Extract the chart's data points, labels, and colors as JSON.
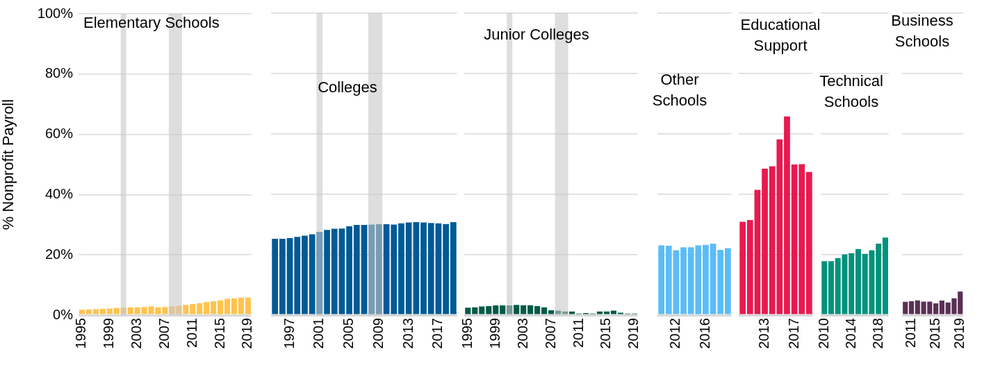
{
  "chart_data": [
    {
      "type": "bar",
      "title": "Elementary Schools",
      "ylabel": "% Nonprofit Payroll",
      "color": "#ffc34f",
      "x": [
        1995,
        1996,
        1997,
        1998,
        1999,
        2000,
        2001,
        2002,
        2003,
        2004,
        2005,
        2006,
        2007,
        2008,
        2009,
        2010,
        2011,
        2012,
        2013,
        2014,
        2015,
        2016,
        2017,
        2018,
        2019
      ],
      "values": [
        1.8,
        1.9,
        2.0,
        2.1,
        2.2,
        2.4,
        2.5,
        2.6,
        2.6,
        2.7,
        2.9,
        2.6,
        2.7,
        2.9,
        3.1,
        3.4,
        3.7,
        4.0,
        4.3,
        4.6,
        4.9,
        5.4,
        5.6,
        5.8,
        5.8
      ],
      "xlim": [
        1994.5,
        2019.5
      ],
      "xticks": [
        1995,
        1999,
        2003,
        2007,
        2011,
        2015,
        2019
      ],
      "ylim": [
        0,
        100
      ],
      "yticks": [
        {
          "value": 0,
          "label": "0%"
        },
        {
          "value": 20,
          "label": "20%"
        },
        {
          "value": 40,
          "label": "40%"
        },
        {
          "value": 60,
          "label": "60%"
        },
        {
          "value": 80,
          "label": "80%"
        },
        {
          "value": 100,
          "label": "100%"
        }
      ],
      "grid": "y",
      "legend": false,
      "bands": [
        {
          "axis": "x",
          "from": 2000.6,
          "to": 2001.4,
          "color": "#c8c8c8"
        },
        {
          "axis": "x",
          "from": 2007.55,
          "to": 2009.45,
          "color": "#c8c8c8"
        }
      ]
    },
    {
      "type": "bar",
      "title": "Colleges",
      "color": "#005a96",
      "x": [
        1995,
        1996,
        1997,
        1998,
        1999,
        2000,
        2001,
        2002,
        2003,
        2004,
        2005,
        2006,
        2007,
        2008,
        2009,
        2010,
        2011,
        2012,
        2013,
        2014,
        2015,
        2016,
        2017,
        2018,
        2019
      ],
      "values": [
        25.3,
        25.3,
        25.5,
        25.9,
        26.3,
        26.8,
        27.6,
        28.2,
        28.6,
        28.7,
        29.4,
        29.9,
        29.9,
        30.0,
        30.1,
        30.1,
        30.0,
        30.4,
        30.7,
        30.8,
        30.7,
        30.5,
        30.4,
        30.2,
        30.8
      ],
      "xlim": [
        1994.5,
        2019.5
      ],
      "xticks": [
        1997,
        2001,
        2005,
        2009,
        2013,
        2017
      ],
      "ylim": [
        0,
        100
      ],
      "yticks": [
        0,
        20,
        40,
        60,
        80,
        100
      ],
      "grid": "y",
      "legend": false,
      "tick_labels": "x",
      "bands": [
        {
          "axis": "x",
          "from": 2000.6,
          "to": 2001.4,
          "color": "#c8c8c8"
        },
        {
          "axis": "x",
          "from": 2007.55,
          "to": 2009.45,
          "color": "#c8c8c8"
        }
      ]
    },
    {
      "type": "bar",
      "title": "Junior Colleges",
      "color": "#005a46",
      "x": [
        1995,
        1996,
        1997,
        1998,
        1999,
        2000,
        2001,
        2002,
        2003,
        2004,
        2005,
        2006,
        2007,
        2008,
        2009,
        2010,
        2011,
        2012,
        2013,
        2014,
        2015,
        2016,
        2017,
        2018,
        2019
      ],
      "values": [
        2.5,
        2.6,
        2.9,
        3.0,
        3.2,
        3.2,
        3.2,
        3.4,
        3.3,
        3.3,
        3.0,
        2.6,
        1.6,
        1.5,
        1.2,
        1.2,
        0.5,
        0.7,
        0.5,
        1.2,
        1.2,
        1.5,
        0.8,
        0.5,
        0.5
      ],
      "xlim": [
        1994.5,
        2019.5
      ],
      "xticks": [
        1995,
        1999,
        2003,
        2007,
        2011,
        2015,
        2019
      ],
      "ylim": [
        0,
        100
      ],
      "yticks": [
        0,
        20,
        40,
        60,
        80,
        100
      ],
      "grid": "y",
      "legend": false,
      "tick_labels": "x",
      "bands": [
        {
          "axis": "x",
          "from": 2000.6,
          "to": 2001.4,
          "color": "#c8c8c8"
        },
        {
          "axis": "x",
          "from": 2007.55,
          "to": 2009.45,
          "color": "#c8c8c8"
        }
      ]
    },
    {
      "type": "bar",
      "title": "Other Schools",
      "color": "#5bbcf7",
      "x": [
        2010,
        2011,
        2012,
        2013,
        2014,
        2015,
        2016,
        2017,
        2018,
        2019
      ],
      "values": [
        23.1,
        23.0,
        21.5,
        22.5,
        22.5,
        23.1,
        23.3,
        23.7,
        21.6,
        22.2
      ],
      "xlim": [
        2009.5,
        2019.5
      ],
      "xticks": [
        2012,
        2016
      ],
      "ylim": [
        0,
        100
      ],
      "yticks": [
        0,
        20,
        40,
        60,
        80,
        100
      ],
      "grid": "y",
      "legend": false,
      "tick_labels": "x"
    },
    {
      "type": "bar",
      "title": "Educational Support",
      "color": "#e8194f",
      "x": [
        2010,
        2011,
        2012,
        2013,
        2014,
        2015,
        2016,
        2017,
        2018,
        2019
      ],
      "values": [
        30.9,
        31.5,
        41.5,
        48.5,
        49.3,
        58.2,
        65.8,
        49.9,
        50.0,
        47.4
      ],
      "xlim": [
        2009.5,
        2019.5
      ],
      "xticks": [
        2013,
        2017
      ],
      "ylim": [
        0,
        100
      ],
      "yticks": [
        0,
        20,
        40,
        60,
        80,
        100
      ],
      "grid": "y",
      "legend": false,
      "tick_labels": "x"
    },
    {
      "type": "bar",
      "title": "Technical Schools",
      "color": "#00927c",
      "x": [
        2010,
        2011,
        2012,
        2013,
        2014,
        2015,
        2016,
        2017,
        2018,
        2019
      ],
      "values": [
        17.9,
        17.9,
        18.9,
        20.1,
        20.5,
        21.9,
        20.3,
        21.5,
        23.7,
        25.7
      ],
      "xlim": [
        2009.5,
        2019.5
      ],
      "xticks": [
        2010,
        2014,
        2018
      ],
      "ylim": [
        0,
        100
      ],
      "yticks": [
        0,
        20,
        40,
        60,
        80,
        100
      ],
      "grid": "y",
      "legend": false,
      "tick_labels": "x"
    },
    {
      "type": "bar",
      "title": "Business Schools",
      "color": "#5a3055",
      "x": [
        2010,
        2011,
        2012,
        2013,
        2014,
        2015,
        2016,
        2017,
        2018,
        2019
      ],
      "values": [
        4.4,
        4.6,
        4.9,
        4.5,
        4.5,
        3.9,
        4.8,
        4.2,
        5.6,
        7.8
      ],
      "xlim": [
        2009.5,
        2019.5
      ],
      "xticks": [
        2011,
        2015,
        2019
      ],
      "ylim": [
        0,
        100
      ],
      "yticks": [
        0,
        20,
        40,
        60,
        80,
        100
      ],
      "grid": "y",
      "legend": false,
      "tick_labels": "x"
    }
  ]
}
